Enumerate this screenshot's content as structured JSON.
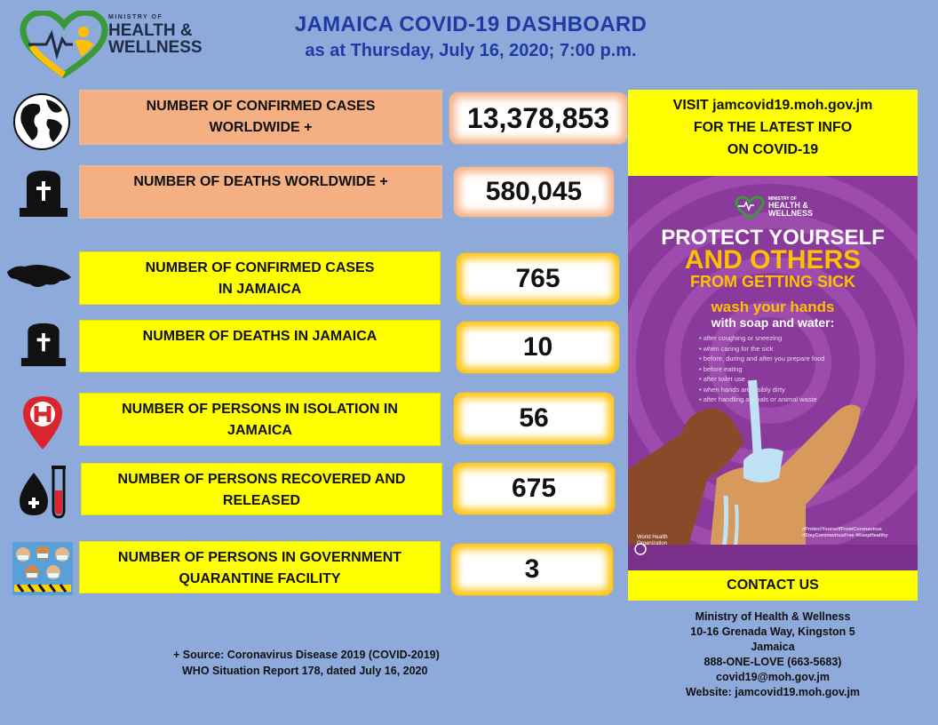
{
  "header": {
    "logo": {
      "line1": "MINISTRY OF",
      "line2": "HEALTH &",
      "line3": "WELLNESS"
    },
    "title": "JAMAICA COVID-19 DASHBOARD",
    "subtitle": "as at Thursday, July 16, 2020; 7:00 p.m."
  },
  "stats": [
    {
      "label_line1": "NUMBER OF CONFIRMED  CASES",
      "label_line2": "WORLDWIDE +",
      "value": "13,378,853",
      "icon": "globe-icon"
    },
    {
      "label_line1": "NUMBER OF DEATHS  WORLDWIDE +",
      "label_line2": "",
      "value": "580,045",
      "icon": "tombstone-icon"
    },
    {
      "label_line1": "NUMBER OF CONFIRMED  CASES",
      "label_line2": "IN JAMAICA",
      "value": "765",
      "icon": "jamaica-map-icon"
    },
    {
      "label_line1": "NUMBER OF DEATHS  IN JAMAICA",
      "label_line2": "",
      "value": "10",
      "icon": "tombstone-icon"
    },
    {
      "label_line1": "NUMBER OF PERSONS IN ISOLATION IN",
      "label_line2": "JAMAICA",
      "value": "56",
      "icon": "hospital-pin-icon"
    },
    {
      "label_line1": "NUMBER OF PERSONS RECOVERED AND",
      "label_line2": "RELEASED",
      "value": "675",
      "icon": "blood-test-tube-icon"
    },
    {
      "label_line1": "NUMBER OF PERSONS IN GOVERNMENT",
      "label_line2": "QUARANTINE FACILITY",
      "value": "3",
      "icon": "masked-people-icon"
    }
  ],
  "visit": {
    "line1": "VISIT  jamcovid19.moh.gov.jm",
    "line2": "FOR THE LATEST INFO",
    "line3": "ON COVID-19"
  },
  "poster": {
    "logo_line1": "MINISTRY OF",
    "logo_line2": "HEALTH &",
    "logo_line3": "WELLNESS",
    "headline1": "PROTECT YOURSELF",
    "headline2": "AND OTHERS",
    "headline3": "FROM GETTING SICK",
    "wash1": "wash your hands",
    "wash2": "with soap and water:",
    "items": [
      "after coughing or sneezing",
      "when caring for the sick",
      "before, during and after you prepare food",
      "before eating",
      "after toilet use",
      "when hands are visibly dirty",
      "after handling animals or animal waste"
    ],
    "who_text": "World Health Organization",
    "hashtag1": "#ProtectYourselfFromCoronavirus",
    "hashtag2": "#StayCoronavirusFree #KeepHealthy"
  },
  "contact": {
    "title": "CONTACT US",
    "org": "Ministry of Health & Wellness",
    "address1": "10-16 Grenada Way, Kingston 5",
    "address2": "Jamaica",
    "phone": "888-ONE-LOVE  (663-5683)",
    "email": "covid19@moh.gov.jm",
    "website": "Website: jamcovid19.moh.gov.jm"
  },
  "source": {
    "line1": "+ Source: Coronavirus Disease 2019 (COVID-2019)",
    "line2": "WHO Situation Report 178, dated July 16, 2020"
  },
  "colors": {
    "background": "#8eaadb",
    "peach": "#f4b083",
    "yellow": "#ffff00",
    "gold": "#ffc000",
    "title_blue": "#1f3aa4",
    "poster_purple": "#8a3a9a"
  }
}
